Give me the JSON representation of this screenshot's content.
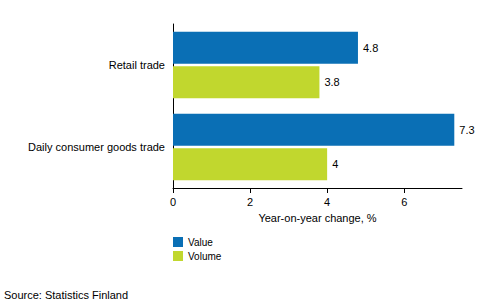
{
  "chart_data": {
    "type": "bar",
    "orientation": "horizontal",
    "categories": [
      "Retail trade",
      "Daily consumer goods trade"
    ],
    "series": [
      {
        "name": "Value",
        "color": "#0a6fb5",
        "values": [
          4.8,
          7.3
        ]
      },
      {
        "name": "Volume",
        "color": "#c1d72e",
        "values": [
          3.8,
          4.0
        ]
      }
    ],
    "x_label": "Year-on-year change, %",
    "xlim": [
      0,
      7.5
    ],
    "xticks": [
      0,
      2,
      4,
      6
    ],
    "grid": false,
    "data_labels": true,
    "legend": "bottom-left",
    "annotations": [
      "Source: Statistics Finland"
    ]
  }
}
